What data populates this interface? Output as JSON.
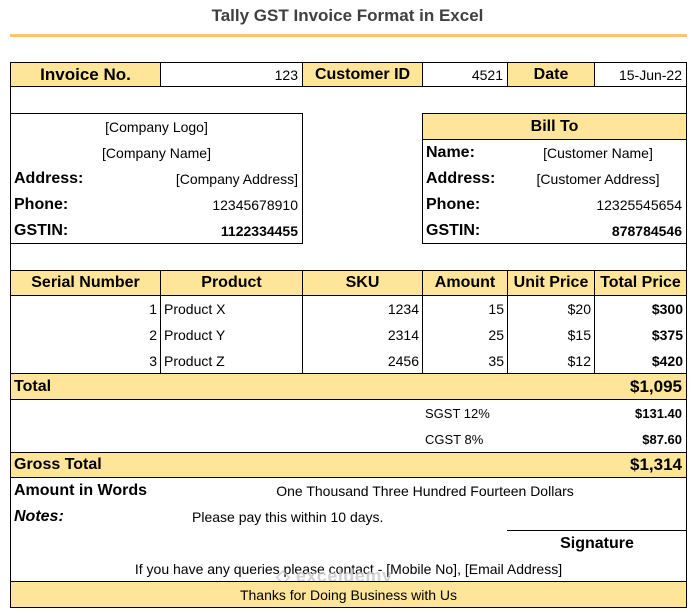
{
  "title": "Tally GST Invoice Format in Excel",
  "header": {
    "invoice_label": "Invoice No.",
    "invoice_value": "123",
    "customer_label": "Customer ID",
    "customer_value": "4521",
    "date_label": "Date",
    "date_value": "15-Jun-22"
  },
  "company": {
    "logo": "[Company Logo]",
    "name": "[Company Name]",
    "address_label": "Address:",
    "address_value": "[Company Address]",
    "phone_label": "Phone:",
    "phone_value": "12345678910",
    "gstin_label": "GSTIN:",
    "gstin_value": "1122334455"
  },
  "bill_to": {
    "heading": "Bill To",
    "name_label": "Name:",
    "name_value": "[Customer Name]",
    "address_label": "Address:",
    "address_value": "[Customer Address]",
    "phone_label": "Phone:",
    "phone_value": "12325545654",
    "gstin_label": "GSTIN:",
    "gstin_value": "878784546"
  },
  "table": {
    "headers": [
      "Serial Number",
      "Product",
      "SKU",
      "Amount",
      "Unit Price",
      "Total Price"
    ],
    "rows": [
      [
        "1",
        "Product X",
        "1234",
        "15",
        "$20",
        "$300"
      ],
      [
        "2",
        "Product Y",
        "2314",
        "25",
        "$15",
        "$375"
      ],
      [
        "3",
        "Product Z",
        "2456",
        "35",
        "$12",
        "$420"
      ]
    ]
  },
  "totals": {
    "total_label": "Total",
    "total_value": "$1,095",
    "sgst_label": "SGST 12%",
    "sgst_value": "$131.40",
    "cgst_label": "CGST 8%",
    "cgst_value": "$87.60",
    "gross_label": "Gross Total",
    "gross_value": "$1,314"
  },
  "footer": {
    "words_label": "Amount in Words",
    "words_value": "One Thousand Three Hundred Fourteen Dollars",
    "notes_label": "Notes:",
    "notes_value": "Please pay this within 10 days.",
    "signature_label": "Signature",
    "queries": "If you have any queries please contact -  [Mobile No], [Email Address]",
    "thanks": "Thanks for Doing Business with Us"
  },
  "watermark": "exceldemy",
  "colors": {
    "accent_yellow": "#ffe59a",
    "title_line": "#f7c86a"
  }
}
